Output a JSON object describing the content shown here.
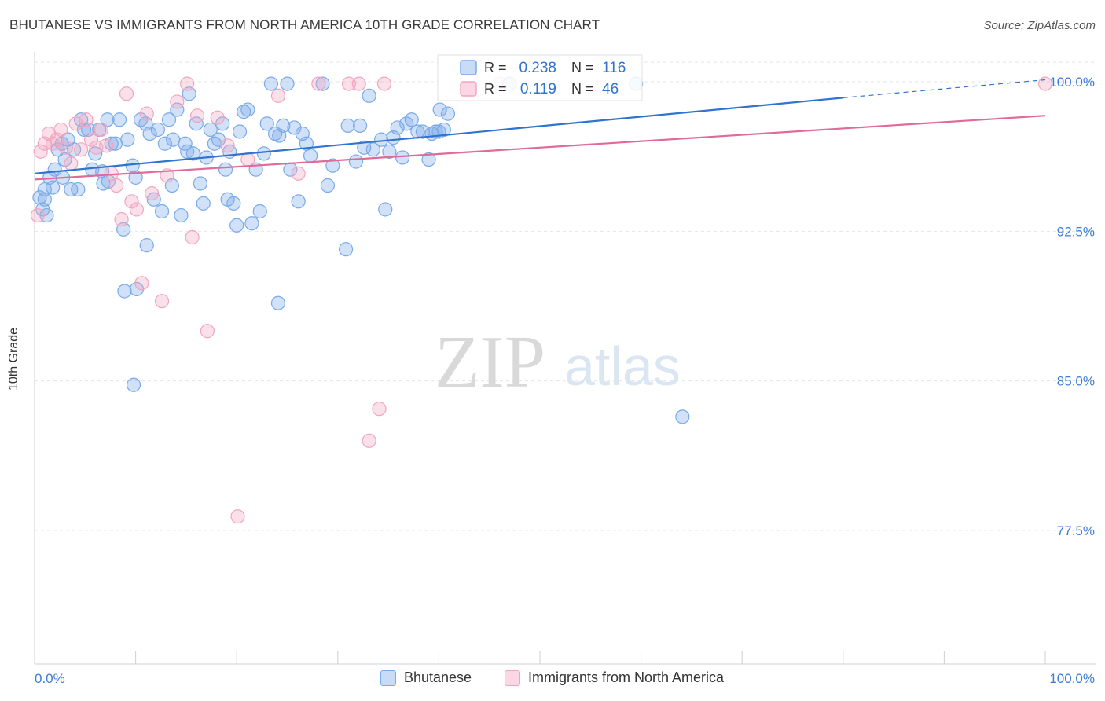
{
  "chart_data": {
    "type": "scatter",
    "title": "BHUTANESE VS IMMIGRANTS FROM NORTH AMERICA 10TH GRADE CORRELATION CHART",
    "source": "Source: ZipAtlas.com",
    "watermark": "ZIPatlas",
    "xlabel": "",
    "ylabel": "10th Grade",
    "xlim": [
      0,
      100
    ],
    "ylim": [
      70.8,
      101.5
    ],
    "x_tick_labels": {
      "left": "0.0%",
      "right": "100.0%"
    },
    "y_ticks": [
      {
        "value": 100.0,
        "label": "100.0%"
      },
      {
        "value": 92.5,
        "label": "92.5%"
      },
      {
        "value": 85.0,
        "label": "85.0%"
      },
      {
        "value": 77.5,
        "label": "77.5%"
      }
    ],
    "grid": true,
    "legend_position": "top-center",
    "stats": [
      {
        "series": "Bhutanese",
        "r_label": "R =",
        "r": "0.238",
        "n_label": "N =",
        "n": "116"
      },
      {
        "series": "Immigrants from North America",
        "r_label": "R =",
        "r": "0.119",
        "n_label": "N =",
        "n": "46"
      }
    ],
    "series": [
      {
        "name": "Bhutanese",
        "color": "#7aaae8",
        "line_color": "#2f74d0",
        "trend": {
          "x0": 0,
          "y0": 95.4,
          "x1": 80,
          "y1": 99.2,
          "dash_to_x": 100,
          "dash_to_y": 100.1
        },
        "points": [
          [
            0.5,
            94.2
          ],
          [
            0.8,
            93.6
          ],
          [
            1,
            94.6
          ],
          [
            1.2,
            93.3
          ],
          [
            1.5,
            95.2
          ],
          [
            1.8,
            94.7
          ],
          [
            2,
            95.6
          ],
          [
            2.3,
            96.6
          ],
          [
            2.7,
            96.9
          ],
          [
            3,
            96.1
          ],
          [
            3.3,
            97.1
          ],
          [
            3.6,
            94.6
          ],
          [
            3.9,
            96.6
          ],
          [
            4.3,
            94.6
          ],
          [
            4.6,
            98.1
          ],
          [
            4.9,
            97.6
          ],
          [
            5.3,
            97.6
          ],
          [
            5.7,
            95.6
          ],
          [
            6,
            96.4
          ],
          [
            6.4,
            97.6
          ],
          [
            6.8,
            94.9
          ],
          [
            7.2,
            98.1
          ],
          [
            7.6,
            96.9
          ],
          [
            8,
            96.9
          ],
          [
            8.4,
            98.1
          ],
          [
            8.8,
            92.6
          ],
          [
            9.2,
            97.1
          ],
          [
            9.7,
            95.8
          ],
          [
            10,
            95.2
          ],
          [
            10.5,
            98.1
          ],
          [
            11,
            97.9
          ],
          [
            11.4,
            97.4
          ],
          [
            11.8,
            94.1
          ],
          [
            12.2,
            97.6
          ],
          [
            12.6,
            93.5
          ],
          [
            12.9,
            96.9
          ],
          [
            13.3,
            98.1
          ],
          [
            13.7,
            97.1
          ],
          [
            14.1,
            98.6
          ],
          [
            14.5,
            93.3
          ],
          [
            14.9,
            96.9
          ],
          [
            15.3,
            99.4
          ],
          [
            15.7,
            96.4
          ],
          [
            16,
            97.9
          ],
          [
            16.4,
            94.9
          ],
          [
            16.7,
            93.9
          ],
          [
            17,
            96.2
          ],
          [
            17.4,
            97.6
          ],
          [
            17.8,
            96.9
          ],
          [
            18.2,
            97.1
          ],
          [
            18.6,
            97.9
          ],
          [
            18.9,
            95.6
          ],
          [
            19.3,
            96.5
          ],
          [
            19.7,
            93.9
          ],
          [
            20,
            92.8
          ],
          [
            20.3,
            97.5
          ],
          [
            20.7,
            98.5
          ],
          [
            21.1,
            98.6
          ],
          [
            21.5,
            92.9
          ],
          [
            21.9,
            95.6
          ],
          [
            22.3,
            93.5
          ],
          [
            22.7,
            96.4
          ],
          [
            23,
            97.9
          ],
          [
            23.4,
            99.9
          ],
          [
            23.8,
            97.4
          ],
          [
            24.2,
            97.3
          ],
          [
            24.6,
            97.8
          ],
          [
            25,
            99.9
          ],
          [
            25.3,
            95.6
          ],
          [
            25.7,
            97.7
          ],
          [
            26.1,
            94.0
          ],
          [
            26.5,
            97.4
          ],
          [
            26.9,
            96.9
          ],
          [
            27.3,
            96.3
          ],
          [
            28.5,
            99.9
          ],
          [
            29,
            94.8
          ],
          [
            29.5,
            95.8
          ],
          [
            31,
            97.8
          ],
          [
            31.8,
            96.0
          ],
          [
            32.2,
            97.8
          ],
          [
            32.6,
            96.7
          ],
          [
            33.1,
            99.3
          ],
          [
            34.3,
            97.1
          ],
          [
            34.7,
            93.6
          ],
          [
            35.1,
            96.5
          ],
          [
            35.5,
            97.2
          ],
          [
            35.9,
            97.7
          ],
          [
            36.4,
            96.2
          ],
          [
            37.3,
            98.1
          ],
          [
            36.8,
            97.9
          ],
          [
            37.9,
            97.5
          ],
          [
            38.4,
            97.5
          ],
          [
            39,
            96.1
          ],
          [
            39.3,
            97.4
          ],
          [
            39.7,
            97.5
          ],
          [
            40,
            97.5
          ],
          [
            40.5,
            97.6
          ],
          [
            40.1,
            98.6
          ],
          [
            40.9,
            98.4
          ],
          [
            47,
            99.9
          ],
          [
            59.5,
            99.9
          ],
          [
            11.1,
            91.8
          ],
          [
            8.9,
            89.5
          ],
          [
            10.1,
            89.6
          ],
          [
            24.1,
            88.9
          ],
          [
            30.8,
            91.6
          ],
          [
            9.8,
            84.8
          ],
          [
            64.1,
            83.2
          ],
          [
            1,
            94.1
          ],
          [
            2.8,
            95.2
          ],
          [
            6.7,
            95.5
          ],
          [
            13.6,
            94.8
          ],
          [
            15.1,
            96.5
          ],
          [
            19.1,
            94.1
          ],
          [
            7.3,
            95.0
          ],
          [
            33.5,
            96.6
          ]
        ]
      },
      {
        "name": "Immigrants from North America",
        "color": "#f2a5c0",
        "line_color": "#e06a98",
        "trend": {
          "x0": 0,
          "y0": 95.1,
          "x1": 100,
          "y1": 98.3
        },
        "points": [
          [
            0.3,
            93.3
          ],
          [
            0.6,
            96.5
          ],
          [
            1,
            96.9
          ],
          [
            1.4,
            97.4
          ],
          [
            1.8,
            96.9
          ],
          [
            2.2,
            97.1
          ],
          [
            2.6,
            97.6
          ],
          [
            3.1,
            96.7
          ],
          [
            3.6,
            95.9
          ],
          [
            4.1,
            97.9
          ],
          [
            4.6,
            96.6
          ],
          [
            5.1,
            98.1
          ],
          [
            5.6,
            97.1
          ],
          [
            6.1,
            96.7
          ],
          [
            6.6,
            97.6
          ],
          [
            7.1,
            96.8
          ],
          [
            7.6,
            95.4
          ],
          [
            8.1,
            94.8
          ],
          [
            8.6,
            93.1
          ],
          [
            9.1,
            99.4
          ],
          [
            9.6,
            94.0
          ],
          [
            10.1,
            93.6
          ],
          [
            10.6,
            89.9
          ],
          [
            11.1,
            98.4
          ],
          [
            11.6,
            94.4
          ],
          [
            12.6,
            89.0
          ],
          [
            13.1,
            95.3
          ],
          [
            14.1,
            99.0
          ],
          [
            15.1,
            99.9
          ],
          [
            15.6,
            92.2
          ],
          [
            16.1,
            98.3
          ],
          [
            17.1,
            87.5
          ],
          [
            18.1,
            98.2
          ],
          [
            19.1,
            96.8
          ],
          [
            20.1,
            78.2
          ],
          [
            21.1,
            96.1
          ],
          [
            24.1,
            99.3
          ],
          [
            26.1,
            95.4
          ],
          [
            28.1,
            99.9
          ],
          [
            31.1,
            99.9
          ],
          [
            32.1,
            99.9
          ],
          [
            34.1,
            83.6
          ],
          [
            33.1,
            82.0
          ],
          [
            34.6,
            99.9
          ],
          [
            46.1,
            99.9
          ],
          [
            100,
            99.9
          ]
        ]
      }
    ]
  }
}
